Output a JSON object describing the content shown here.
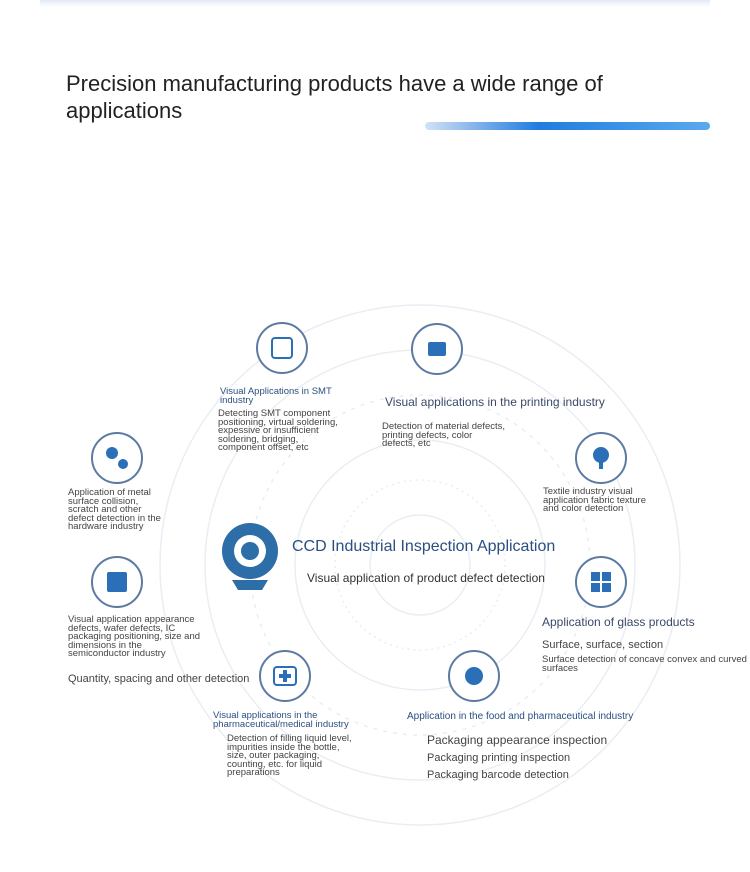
{
  "header": {
    "title": "Precision manufacturing products have a wide range of applications"
  },
  "center": {
    "title": "CCD Industrial Inspection Application",
    "subtitle": "Visual application of product defect detection"
  },
  "nodes": [
    {
      "title": "Visual Applications in SMT industry",
      "details": [
        "Detecting SMT component positioning, virtual soldering, expessive or insufficient soldering, bridging, component offset, etc"
      ]
    },
    {
      "title": "Visual applications in the printing industry",
      "details": [
        "Detection of material defects, printing defects, color defects, etc"
      ]
    },
    {
      "details": [
        "Application of metal surface collision, scratch and other defect detection in the hardware industry"
      ]
    },
    {
      "details": [
        "Textile industry visual application fabric texture and color detection"
      ]
    },
    {
      "details": [
        "Visual application appearance defects, wafer defects, IC packaging positioning, size and dimensions in the semiconductor industry",
        "Quantity, spacing and other detection"
      ]
    },
    {
      "title": "Application of glass products",
      "details": [
        "Surface, surface, section",
        "Surface detection of concave convex and curved surfaces"
      ]
    },
    {
      "title": "Visual applications in the pharmaceutical/medical industry",
      "details": [
        "Detection of filling liquid level, impurities inside the bottle, size, outer packaging, counting, etc. for liquid preparations"
      ]
    },
    {
      "title": "Application in the food and pharmaceutical industry",
      "details": [
        "Packaging appearance inspection",
        "Packaging printing inspection",
        "Packaging barcode detection"
      ]
    }
  ]
}
